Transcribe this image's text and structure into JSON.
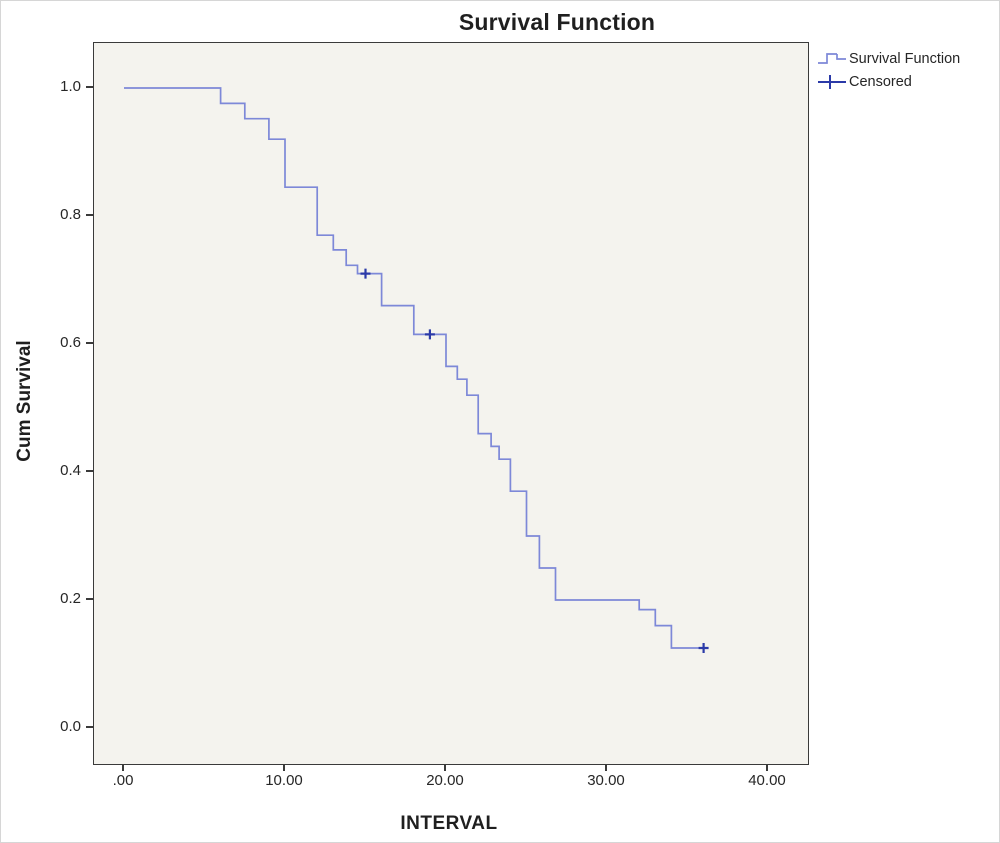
{
  "chart_data": {
    "type": "line",
    "subtype": "kaplan-meier-step",
    "title": "Survival Function",
    "xlabel": "INTERVAL",
    "ylabel": "Cum Survival",
    "x_tick_labels": [
      ".00",
      "10.00",
      "20.00",
      "30.00",
      "40.00"
    ],
    "x_tick_values": [
      0,
      10,
      20,
      30,
      40
    ],
    "y_tick_labels": [
      "1.0",
      "0.8",
      "0.6",
      "0.4",
      "0.2",
      "0.0"
    ],
    "y_tick_values": [
      1.0,
      0.8,
      0.6,
      0.4,
      0.2,
      0.0
    ],
    "xlim": [
      -1.9,
      42.4
    ],
    "ylim": [
      -0.06,
      1.07
    ],
    "grid": false,
    "legend_position": "top-right-outside",
    "legend": [
      {
        "label": "Survival Function",
        "symbol": "step-line"
      },
      {
        "label": "Censored",
        "symbol": "plus"
      }
    ],
    "series": [
      {
        "name": "Survival Function",
        "type": "step",
        "points": [
          [
            0,
            1.0
          ],
          [
            6,
            1.0
          ],
          [
            6,
            0.976
          ],
          [
            7.5,
            0.976
          ],
          [
            7.5,
            0.952
          ],
          [
            9,
            0.952
          ],
          [
            9,
            0.92
          ],
          [
            10,
            0.92
          ],
          [
            10,
            0.845
          ],
          [
            12,
            0.845
          ],
          [
            12,
            0.77
          ],
          [
            13,
            0.77
          ],
          [
            13,
            0.747
          ],
          [
            13.8,
            0.747
          ],
          [
            13.8,
            0.723
          ],
          [
            14.5,
            0.723
          ],
          [
            14.5,
            0.71
          ],
          [
            16,
            0.71
          ],
          [
            16,
            0.66
          ],
          [
            18,
            0.66
          ],
          [
            18,
            0.615
          ],
          [
            20,
            0.615
          ],
          [
            20,
            0.565
          ],
          [
            20.7,
            0.565
          ],
          [
            20.7,
            0.545
          ],
          [
            21.3,
            0.545
          ],
          [
            21.3,
            0.52
          ],
          [
            22,
            0.52
          ],
          [
            22,
            0.46
          ],
          [
            22.8,
            0.46
          ],
          [
            22.8,
            0.44
          ],
          [
            23.3,
            0.44
          ],
          [
            23.3,
            0.42
          ],
          [
            24,
            0.42
          ],
          [
            24,
            0.37
          ],
          [
            25,
            0.37
          ],
          [
            25,
            0.3
          ],
          [
            25.8,
            0.3
          ],
          [
            25.8,
            0.25
          ],
          [
            26.8,
            0.25
          ],
          [
            26.8,
            0.2
          ],
          [
            32,
            0.2
          ],
          [
            32,
            0.185
          ],
          [
            33,
            0.185
          ],
          [
            33,
            0.16
          ],
          [
            34,
            0.16
          ],
          [
            34,
            0.125
          ],
          [
            36.3,
            0.125
          ]
        ]
      }
    ],
    "censored_points": [
      [
        15,
        0.71
      ],
      [
        19,
        0.615
      ],
      [
        36,
        0.125
      ]
    ],
    "colors": {
      "line": "#7d88d8",
      "censored": "#2b3aa8",
      "frame": "#3a3a3a",
      "plot_background": "#f4f3ee",
      "text": "#262626"
    }
  }
}
